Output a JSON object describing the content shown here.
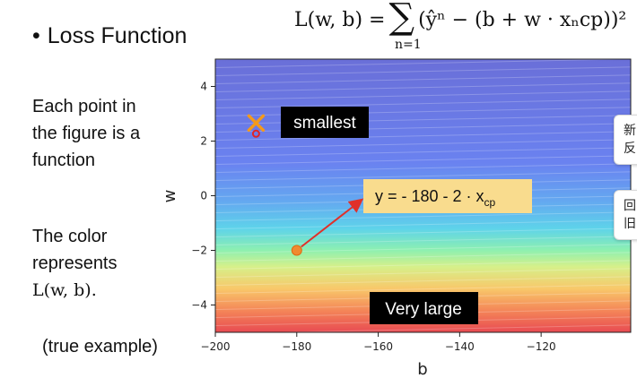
{
  "slide": {
    "title_bullet": "•",
    "title": "Loss Function",
    "formula": {
      "lhs": "L(w, b) =",
      "sigma": "∑",
      "sum_index": "n=1",
      "body": "(ŷⁿ − (b + w · xₙcp))²"
    },
    "description_lines": [
      "Each point in",
      "the figure is a",
      "function"
    ],
    "color_lines": [
      "The color",
      "represents",
      "L(w, b)."
    ],
    "true_example": "(true example)"
  },
  "side_badges": [
    {
      "line1": "新",
      "line2": "反"
    },
    {
      "line1": "回",
      "line2": "旧"
    }
  ],
  "chart_data": {
    "type": "heatmap",
    "xlabel": "b",
    "ylabel": "w",
    "xlim": [
      -200,
      -98
    ],
    "ylim": [
      -5,
      5
    ],
    "x_ticks": [
      -200,
      -180,
      -160,
      -140,
      -120
    ],
    "y_ticks": [
      -4,
      -2,
      0,
      2,
      4
    ],
    "colormap": [
      "#6a6fd8",
      "#6a82f0",
      "#64a8f0",
      "#5ed3ea",
      "#8ef0b0",
      "#d6f08a",
      "#f8c86a",
      "#f48658",
      "#e84a52"
    ],
    "annotations": {
      "smallest_label": "smallest",
      "very_large_label": "Very large",
      "equation_prefix": "y = - 180 - 2 · x",
      "equation_sub": "cp"
    },
    "points": {
      "minimum": {
        "b": -190,
        "w": 2.4
      },
      "example": {
        "b": -180,
        "w": -2
      }
    }
  }
}
